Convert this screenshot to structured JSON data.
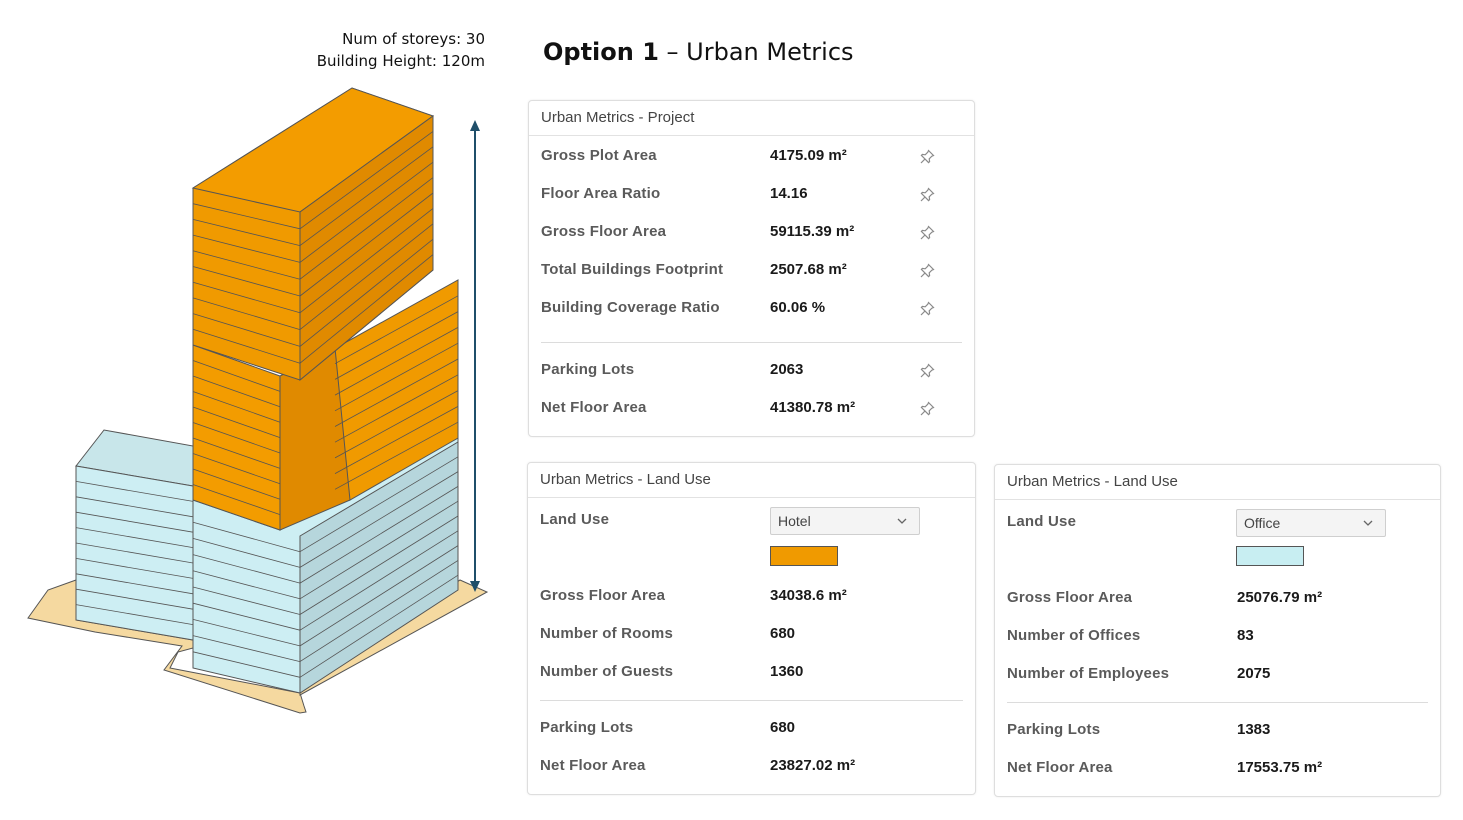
{
  "building": {
    "storeys_label": "Num of storeys: 30",
    "height_label": "Building Height:  120m",
    "colors": {
      "hotel": "#F09A00",
      "office": "#C2E4EA",
      "plot": "#F5D9A0"
    }
  },
  "title": {
    "bold": "Option 1",
    "rest": " – Urban Metrics"
  },
  "project": {
    "header": "Urban Metrics - Project",
    "rows": [
      {
        "label": "Gross Plot Area",
        "value": "4175.09 m²"
      },
      {
        "label": "Floor Area Ratio",
        "value": "14.16"
      },
      {
        "label": "Gross Floor Area",
        "value": "59115.39 m²"
      },
      {
        "label": "Total Buildings Footprint",
        "value": "2507.68 m²"
      },
      {
        "label": "Building Coverage Ratio",
        "value": "60.06 %"
      },
      {
        "label": "Parking Lots",
        "value": "2063"
      },
      {
        "label": "Net Floor Area",
        "value": "41380.78 m²"
      }
    ],
    "pin_icon": "pin-icon"
  },
  "hotel": {
    "header": "Urban Metrics - Land Use",
    "land_use_label": "Land Use",
    "land_use_value": "Hotel",
    "color": "#F09A00",
    "rows": [
      {
        "label": "Gross Floor Area",
        "value": "34038.6 m²"
      },
      {
        "label": "Number of Rooms",
        "value": "680"
      },
      {
        "label": "Number of Guests",
        "value": "1360"
      },
      {
        "label": "Parking Lots",
        "value": "680"
      },
      {
        "label": "Net Floor Area",
        "value": "23827.02 m²"
      }
    ]
  },
  "office": {
    "header": "Urban Metrics - Land Use",
    "land_use_label": "Land Use",
    "land_use_value": "Office",
    "color": "#C8EEF2",
    "rows": [
      {
        "label": "Gross Floor Area",
        "value": "25076.79 m²"
      },
      {
        "label": "Number of Offices",
        "value": "83"
      },
      {
        "label": "Number of Employees",
        "value": "2075"
      },
      {
        "label": "Parking Lots",
        "value": "1383"
      },
      {
        "label": "Net Floor Area",
        "value": "17553.75 m²"
      }
    ]
  }
}
